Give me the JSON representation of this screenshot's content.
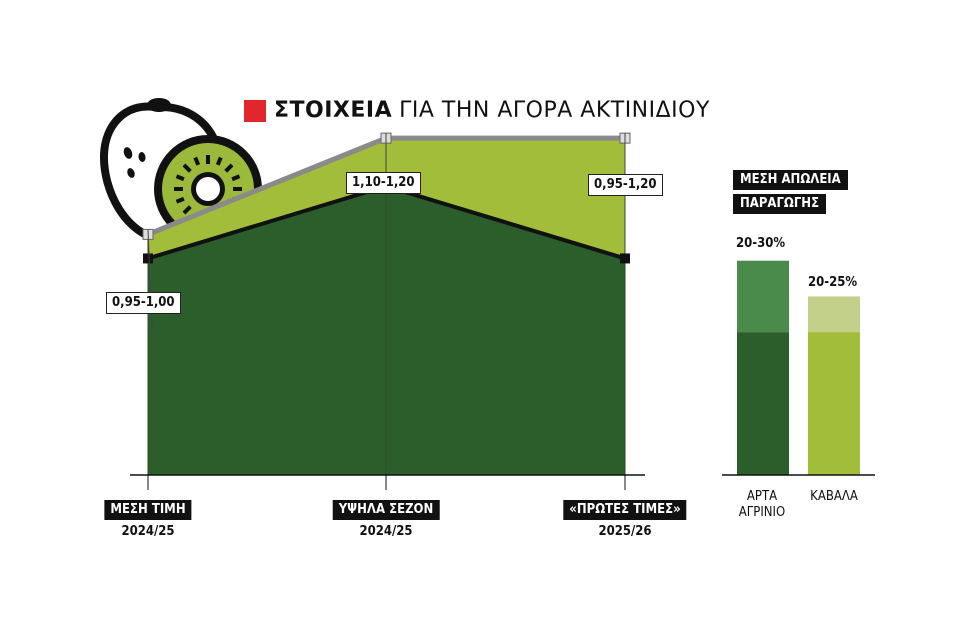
{
  "title": {
    "bold": "ΣΤΟΙΧΕΙΑ",
    "rest": "ΓΙΑ ΤΗΝ ΑΓΟΡΑ ΑΚΤΙΝΙΔΙΟΥ",
    "accent_color": "#e1262c"
  },
  "icon": "kiwi-icon",
  "chart_data": [
    {
      "type": "area",
      "categories": [
        {
          "line1": "ΜΕΣΗ ΤΙΜΗ",
          "line2": "2024/25"
        },
        {
          "line1": "ΥΨΗΛΑ ΣΕΖΟΝ",
          "line2": "2024/25"
        },
        {
          "line1": "«ΠΡΩΤΕΣ ΤΙΜΕΣ»",
          "line2": "2025/26"
        }
      ],
      "range_labels": [
        "0,95-1,00",
        "1,10-1,20",
        "0,95-1,20"
      ],
      "series": [
        {
          "values": [
            0.95,
            1.1,
            0.95
          ],
          "color": "#2b5e2b"
        },
        {
          "values": [
            1.0,
            1.2,
            1.2
          ],
          "color": "#a1bd3a"
        }
      ],
      "ylim": [
        0.5,
        1.3
      ],
      "grid": false
    },
    {
      "type": "bar",
      "title": [
        "ΜΕΣΗ ΑΠΩΛΕΙΑ",
        "ΠΑΡΑΓΩΓΗΣ"
      ],
      "categories": [
        [
          "ΑΡΤΑ",
          "ΑΓΡΙΝΙΟ"
        ],
        [
          "ΚΑΒΑΛΑ"
        ]
      ],
      "ranges": [
        [
          20,
          30
        ],
        [
          20,
          25
        ]
      ],
      "labels": [
        "20-30%",
        "20-25%"
      ],
      "ylim": [
        0,
        35
      ],
      "colors": [
        {
          "base": "#2b5e2b",
          "upper": "#4a8a4a"
        },
        {
          "base": "#a1bd3a",
          "upper": "#c3d08a"
        }
      ]
    }
  ]
}
